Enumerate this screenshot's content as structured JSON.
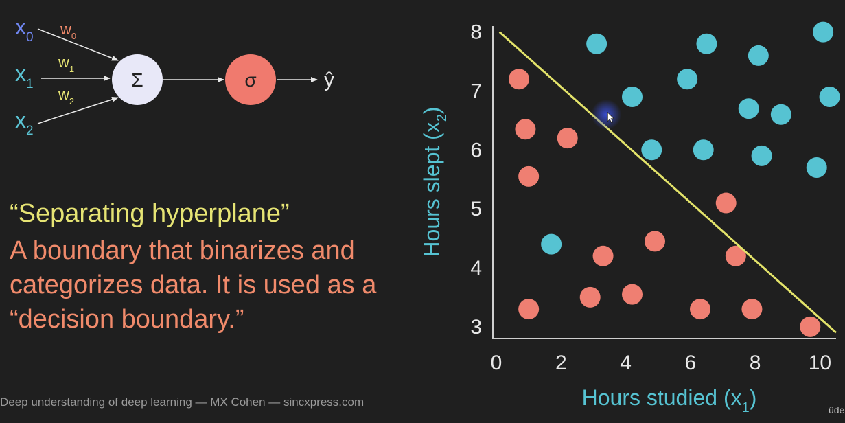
{
  "perceptron": {
    "inputs": [
      "x",
      "x",
      "x"
    ],
    "input_subscripts": [
      "0",
      "1",
      "2"
    ],
    "weights": [
      "w",
      "w",
      "w"
    ],
    "weight_subscripts": [
      "0",
      "1",
      "2"
    ],
    "sum_symbol": "Σ",
    "activation_symbol": "σ",
    "output": "ŷ",
    "colors": {
      "input0": "#6f86f0",
      "input1": "#5bc4d4",
      "input2": "#5bc4d4",
      "weight0": "#f08a6b",
      "weight1": "#e6e474",
      "weight2": "#e6e474",
      "sum_node": "#e8e8f8",
      "activation_node": "#f07a6e"
    }
  },
  "text": {
    "title": "“Separating hyperplane”",
    "description": "A boundary that binarizes and categorizes data. It is used as a “decision boundary.”"
  },
  "footer": {
    "credit": "Deep understanding of deep learning — MX Cohen — sincxpress.com",
    "watermark": "ûde"
  },
  "chart_data": {
    "type": "scatter",
    "xlabel": "Hours studied (x",
    "xlabel_sub": "1",
    "xlabel_close": ")",
    "ylabel": "Hours slept (x",
    "ylabel_sub": "2",
    "ylabel_close": ")",
    "xlim": [
      0,
      10.5
    ],
    "ylim": [
      2.8,
      8.1
    ],
    "xticks": [
      0,
      2,
      4,
      6,
      8,
      10
    ],
    "yticks": [
      3,
      4,
      5,
      6,
      7,
      8
    ],
    "grid": false,
    "series": [
      {
        "color": "#56c3d2",
        "points": [
          [
            3.1,
            7.8
          ],
          [
            6.5,
            7.8
          ],
          [
            8.1,
            7.6
          ],
          [
            10.1,
            8.0
          ],
          [
            4.2,
            6.9
          ],
          [
            5.9,
            7.2
          ],
          [
            7.8,
            6.7
          ],
          [
            8.8,
            6.6
          ],
          [
            10.3,
            6.9
          ],
          [
            4.8,
            6.0
          ],
          [
            6.4,
            6.0
          ],
          [
            8.2,
            5.9
          ],
          [
            9.9,
            5.7
          ],
          [
            1.7,
            4.4
          ]
        ]
      },
      {
        "color": "#ef7f72",
        "points": [
          [
            0.7,
            7.2
          ],
          [
            0.9,
            6.35
          ],
          [
            2.2,
            6.2
          ],
          [
            1.0,
            5.55
          ],
          [
            3.3,
            4.2
          ],
          [
            4.9,
            4.45
          ],
          [
            7.1,
            5.1
          ],
          [
            7.4,
            4.2
          ],
          [
            1.0,
            3.3
          ],
          [
            2.9,
            3.5
          ],
          [
            4.2,
            3.55
          ],
          [
            6.3,
            3.3
          ],
          [
            7.9,
            3.3
          ],
          [
            9.7,
            3.0
          ]
        ]
      }
    ],
    "boundary": {
      "color": "#e3e36a",
      "from": [
        0.1,
        8.0
      ],
      "to": [
        10.5,
        2.9
      ]
    },
    "cursor": {
      "x": 3.4,
      "y": 6.6
    }
  }
}
